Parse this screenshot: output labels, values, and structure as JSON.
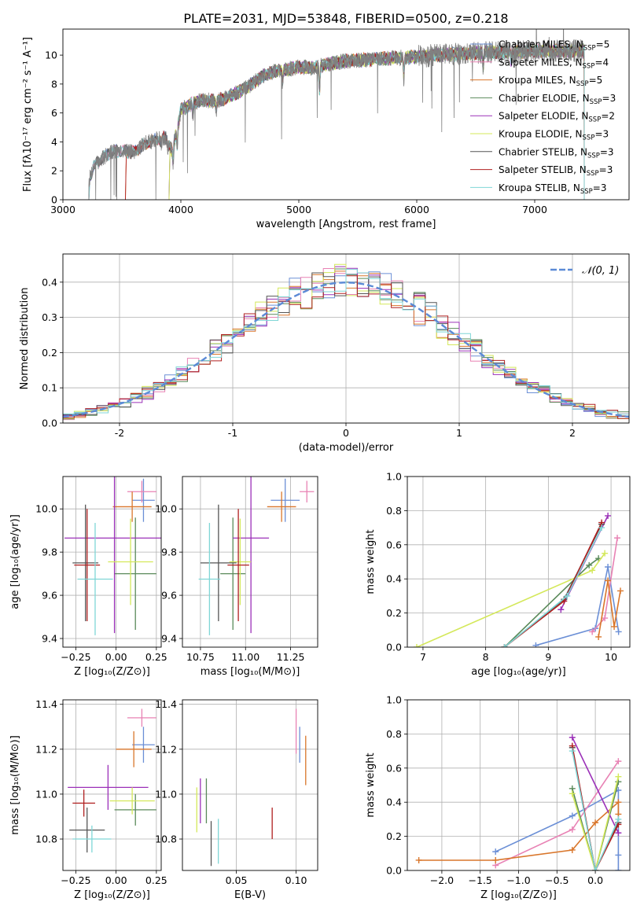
{
  "figure": {
    "title": "PLATE=2031, MJD=53848, FIBERID=0500, z=0.218"
  },
  "models": [
    {
      "name": "Chabrier MILES",
      "nssp": "5",
      "color": "#6b8fd6"
    },
    {
      "name": "Salpeter MILES",
      "nssp": "4",
      "color": "#e882b4"
    },
    {
      "name": "Kroupa MILES",
      "nssp": "5",
      "color": "#d9762b"
    },
    {
      "name": "Chabrier ELODIE",
      "nssp": "3",
      "color": "#5a8a5a"
    },
    {
      "name": "Salpeter ELODIE",
      "nssp": "2",
      "color": "#9b30b8"
    },
    {
      "name": "Kroupa ELODIE",
      "nssp": "3",
      "color": "#d4e85a"
    },
    {
      "name": "Chabrier STELIB",
      "nssp": "3",
      "color": "#555555"
    },
    {
      "name": "Salpeter STELIB",
      "nssp": "3",
      "color": "#b02020"
    },
    {
      "name": "Kroupa STELIB",
      "nssp": "3",
      "color": "#7fd6d6"
    }
  ],
  "chart_data": [
    {
      "id": "spectrum",
      "type": "line",
      "xlabel": "wavelength [Angstrom, rest frame]",
      "ylabel": "Flux [fλ10⁻¹⁷ erg cm⁻² s⁻¹ A⁻¹]",
      "xlim": [
        3000,
        7800
      ],
      "ylim": [
        0,
        11.8
      ],
      "xticks": [
        3000,
        4000,
        5000,
        6000,
        7000
      ],
      "yticks": [
        0,
        2,
        4,
        6,
        8,
        10
      ],
      "data_color": "#808080",
      "data_start": 3220,
      "data_end": 7420,
      "continuum": [
        [
          3220,
          1.3
        ],
        [
          3260,
          2.3
        ],
        [
          3300,
          2.6
        ],
        [
          3400,
          3.3
        ],
        [
          3500,
          3.4
        ],
        [
          3600,
          3.3
        ],
        [
          3700,
          3.9
        ],
        [
          3800,
          4.2
        ],
        [
          3880,
          4.3
        ],
        [
          3920,
          3.4
        ],
        [
          3960,
          4.5
        ],
        [
          4000,
          6.2
        ],
        [
          4100,
          6.7
        ],
        [
          4200,
          6.9
        ],
        [
          4300,
          6.8
        ],
        [
          4400,
          7.1
        ],
        [
          4500,
          7.5
        ],
        [
          4600,
          8.0
        ],
        [
          4700,
          8.6
        ],
        [
          4800,
          8.9
        ],
        [
          4900,
          9.0
        ],
        [
          5000,
          9.2
        ],
        [
          5100,
          9.1
        ],
        [
          5200,
          9.3
        ],
        [
          5400,
          9.6
        ],
        [
          5600,
          9.7
        ],
        [
          5800,
          9.8
        ],
        [
          6000,
          9.9
        ],
        [
          6200,
          10.0
        ],
        [
          6400,
          10.1
        ],
        [
          6600,
          10.2
        ],
        [
          6800,
          10.2
        ],
        [
          7000,
          10.3
        ],
        [
          7200,
          10.3
        ],
        [
          7420,
          10.3
        ]
      ],
      "absorption_dips": [
        [
          3934,
          1.5
        ],
        [
          3969,
          1.3
        ],
        [
          4102,
          1.0
        ],
        [
          4861,
          1.0
        ],
        [
          5175,
          2.2
        ],
        [
          5890,
          1.5
        ],
        [
          6563,
          1.2
        ],
        [
          6800,
          0.8
        ],
        [
          4300,
          0.6
        ],
        [
          3835,
          0.5
        ],
        [
          3889,
          0.6
        ]
      ],
      "model_starts": [
        3220,
        3220,
        3530,
        3900,
        3900,
        3900,
        3220,
        3530,
        3220
      ]
    },
    {
      "id": "residuals",
      "type": "step-histogram",
      "xlabel": "(data-model)/error",
      "ylabel": "Normed distribution",
      "xlim": [
        -2.5,
        2.5
      ],
      "ylim": [
        0,
        0.48
      ],
      "xticks": [
        -2,
        -1,
        0,
        1,
        2
      ],
      "yticks": [
        0.0,
        0.1,
        0.2,
        0.3,
        0.4
      ],
      "bin_width": 0.1,
      "reference": {
        "label": "𝒩(0, 1)",
        "mean": 0,
        "sigma": 1,
        "color": "#5b8ad6"
      }
    },
    {
      "id": "age-vs-Z",
      "type": "errorbar",
      "xlabel": "Z [log₁₀(Z/Z⊙)]",
      "ylabel": "age  [log₁₀(age/yr)]",
      "xlim": [
        -0.33,
        0.28
      ],
      "ylim": [
        9.36,
        10.15
      ],
      "xticks": [
        -0.25,
        0.0,
        0.25
      ],
      "xticklabels": [
        "−0.25",
        "0.00",
        "0.25"
      ],
      "yticks": [
        9.4,
        9.6,
        9.8,
        10.0
      ],
      "points": [
        {
          "model": 0,
          "x": 0.17,
          "xerr": 0.07,
          "y": 10.04,
          "yerr": 0.1
        },
        {
          "model": 1,
          "x": 0.16,
          "xerr": 0.09,
          "y": 10.08,
          "yerr": 0.05
        },
        {
          "model": 2,
          "x": 0.1,
          "xerr": 0.12,
          "y": 10.01,
          "yerr": 0.07
        },
        {
          "model": 3,
          "x": 0.12,
          "xerr": 0.13,
          "y": 9.7,
          "yerr": 0.26
        },
        {
          "model": 4,
          "x": -0.01,
          "xerr": 0.31,
          "y": 9.865,
          "yerr": 0.44
        },
        {
          "model": 5,
          "x": 0.09,
          "xerr": 0.14,
          "y": 9.755,
          "yerr": 0.2
        },
        {
          "model": 6,
          "x": -0.19,
          "xerr": 0.08,
          "y": 9.75,
          "yerr": 0.27
        },
        {
          "model": 7,
          "x": -0.18,
          "xerr": 0.08,
          "y": 9.74,
          "yerr": 0.26
        },
        {
          "model": 8,
          "x": -0.13,
          "xerr": 0.11,
          "y": 9.675,
          "yerr": 0.26
        }
      ]
    },
    {
      "id": "age-vs-mass",
      "type": "errorbar",
      "xlabel": "mass [log₁₀(M/M⊙)]",
      "ylabel": "",
      "xlim": [
        10.65,
        11.4
      ],
      "ylim": [
        9.36,
        10.15
      ],
      "xticks": [
        10.75,
        11.0,
        11.25
      ],
      "xticklabels": [
        "10.75",
        "11.00",
        "11.25"
      ],
      "yticks": [
        9.4,
        9.6,
        9.8,
        10.0
      ],
      "points": [
        {
          "model": 0,
          "x": 11.22,
          "xerr": 0.08,
          "y": 10.04,
          "yerr": 0.1
        },
        {
          "model": 1,
          "x": 11.34,
          "xerr": 0.04,
          "y": 10.08,
          "yerr": 0.05
        },
        {
          "model": 2,
          "x": 11.2,
          "xerr": 0.08,
          "y": 10.01,
          "yerr": 0.07
        },
        {
          "model": 3,
          "x": 10.93,
          "xerr": 0.07,
          "y": 9.7,
          "yerr": 0.26
        },
        {
          "model": 4,
          "x": 11.03,
          "xerr": 0.1,
          "y": 9.865,
          "yerr": 0.44
        },
        {
          "model": 5,
          "x": 10.97,
          "xerr": 0.06,
          "y": 9.755,
          "yerr": 0.2
        },
        {
          "model": 6,
          "x": 10.85,
          "xerr": 0.1,
          "y": 9.75,
          "yerr": 0.27
        },
        {
          "model": 7,
          "x": 10.96,
          "xerr": 0.06,
          "y": 9.74,
          "yerr": 0.26
        },
        {
          "model": 8,
          "x": 10.8,
          "xerr": 0.06,
          "y": 9.675,
          "yerr": 0.26
        }
      ]
    },
    {
      "id": "mass-weight-vs-age",
      "type": "line",
      "xlabel": "age  [log₁₀(age/yr)]",
      "ylabel": "mass weight",
      "xlim": [
        6.75,
        10.3
      ],
      "ylim": [
        0,
        1
      ],
      "xticks": [
        7,
        8,
        9,
        10
      ],
      "yticks": [
        0.0,
        0.2,
        0.4,
        0.6,
        0.8,
        1.0
      ],
      "series": [
        {
          "model": 0,
          "points": [
            [
              8.8,
              0.01
            ],
            [
              9.75,
              0.11
            ],
            [
              9.95,
              0.47
            ],
            [
              10.12,
              0.09
            ]
          ]
        },
        {
          "model": 1,
          "points": [
            [
              9.7,
              0.09
            ],
            [
              9.9,
              0.17
            ],
            [
              10.1,
              0.64
            ]
          ]
        },
        {
          "model": 2,
          "points": [
            [
              9.8,
              0.06
            ],
            [
              9.95,
              0.39
            ],
            [
              10.05,
              0.12
            ],
            [
              10.15,
              0.33
            ]
          ]
        },
        {
          "model": 3,
          "points": [
            [
              8.3,
              0.0
            ],
            [
              9.65,
              0.48
            ],
            [
              9.8,
              0.52
            ]
          ]
        },
        {
          "model": 4,
          "points": [
            [
              9.2,
              0.22
            ],
            [
              9.95,
              0.77
            ]
          ]
        },
        {
          "model": 5,
          "points": [
            [
              6.9,
              0.0
            ],
            [
              9.7,
              0.45
            ],
            [
              9.9,
              0.55
            ]
          ]
        },
        {
          "model": 6,
          "points": [
            [
              8.3,
              0.0
            ],
            [
              9.25,
              0.28
            ],
            [
              9.85,
              0.72
            ]
          ]
        },
        {
          "model": 7,
          "points": [
            [
              8.3,
              0.0
            ],
            [
              9.25,
              0.27
            ],
            [
              9.85,
              0.73
            ]
          ]
        },
        {
          "model": 8,
          "points": [
            [
              8.3,
              0.0
            ],
            [
              9.3,
              0.3
            ],
            [
              9.85,
              0.7
            ]
          ]
        }
      ]
    },
    {
      "id": "mass-vs-Z",
      "type": "errorbar",
      "xlabel": "Z [log₁₀(Z/Z⊙)]",
      "ylabel": "mass [log₁₀(M/M⊙)]",
      "xlim": [
        -0.33,
        0.28
      ],
      "ylim": [
        10.66,
        11.42
      ],
      "xticks": [
        -0.25,
        0.0,
        0.25
      ],
      "xticklabels": [
        "−0.25",
        "0.00",
        "0.25"
      ],
      "yticks": [
        10.8,
        11.0,
        11.2,
        11.4
      ],
      "points": [
        {
          "model": 0,
          "x": 0.17,
          "xerr": 0.07,
          "y": 11.22,
          "yerr": 0.08
        },
        {
          "model": 1,
          "x": 0.16,
          "xerr": 0.09,
          "y": 11.34,
          "yerr": 0.04
        },
        {
          "model": 2,
          "x": 0.11,
          "xerr": 0.11,
          "y": 11.2,
          "yerr": 0.08
        },
        {
          "model": 3,
          "x": 0.12,
          "xerr": 0.13,
          "y": 10.93,
          "yerr": 0.07
        },
        {
          "model": 4,
          "x": -0.05,
          "xerr": 0.25,
          "y": 11.03,
          "yerr": 0.1
        },
        {
          "model": 5,
          "x": 0.1,
          "xerr": 0.14,
          "y": 10.97,
          "yerr": 0.06
        },
        {
          "model": 6,
          "x": -0.18,
          "xerr": 0.11,
          "y": 10.84,
          "yerr": 0.1
        },
        {
          "model": 7,
          "x": -0.2,
          "xerr": 0.07,
          "y": 10.96,
          "yerr": 0.06
        },
        {
          "model": 8,
          "x": -0.15,
          "xerr": 0.12,
          "y": 10.8,
          "yerr": 0.06
        }
      ]
    },
    {
      "id": "mass-vs-ebv",
      "type": "errorbar",
      "xlabel": "E(B-V)",
      "ylabel": "",
      "xlim": [
        0.005,
        0.118
      ],
      "ylim": [
        10.66,
        11.42
      ],
      "xticks": [
        0.05,
        0.1
      ],
      "xticklabels": [
        "0.05",
        "0.10"
      ],
      "yticks": [
        10.8,
        11.0,
        11.2,
        11.4
      ],
      "points": [
        {
          "model": 0,
          "x": 0.103,
          "xerr": 0,
          "y": 11.22,
          "yerr": 0.08
        },
        {
          "model": 1,
          "x": 0.1,
          "xerr": 0,
          "y": 11.28,
          "yerr": 0.1
        },
        {
          "model": 2,
          "x": 0.108,
          "xerr": 0,
          "y": 11.15,
          "yerr": 0.11
        },
        {
          "model": 3,
          "x": 0.025,
          "xerr": 0,
          "y": 10.97,
          "yerr": 0.1
        },
        {
          "model": 4,
          "x": 0.02,
          "xerr": 0,
          "y": 10.97,
          "yerr": 0.1
        },
        {
          "model": 5,
          "x": 0.017,
          "xerr": 0,
          "y": 10.93,
          "yerr": 0.1
        },
        {
          "model": 6,
          "x": 0.029,
          "xerr": 0,
          "y": 10.78,
          "yerr": 0.1
        },
        {
          "model": 7,
          "x": 0.08,
          "xerr": 0,
          "y": 10.87,
          "yerr": 0.07
        },
        {
          "model": 8,
          "x": 0.035,
          "xerr": 0,
          "y": 10.79,
          "yerr": 0.1
        }
      ]
    },
    {
      "id": "mass-weight-vs-Z",
      "type": "line",
      "xlabel": "Z [log₁₀(Z/Z⊙)]",
      "ylabel": "mass weight",
      "xlim": [
        -2.45,
        0.45
      ],
      "ylim": [
        0,
        1
      ],
      "xticks": [
        -2.0,
        -1.5,
        -1.0,
        -0.5,
        0.0
      ],
      "xticklabels": [
        "−2.0",
        "−1.5",
        "−1.0",
        "−0.5",
        "0.0"
      ],
      "yticks": [
        0.0,
        0.2,
        0.4,
        0.6,
        0.8,
        1.0
      ],
      "series": [
        {
          "model": 0,
          "points": [
            [
              -1.3,
              0.11
            ],
            [
              -0.3,
              0.32
            ],
            [
              0.3,
              0.47
            ],
            [
              0.3,
              0.09
            ],
            [
              0.3,
              0.0
            ]
          ]
        },
        {
          "model": 1,
          "points": [
            [
              -1.3,
              0.03
            ],
            [
              -0.3,
              0.24
            ],
            [
              0.3,
              0.64
            ]
          ]
        },
        {
          "model": 2,
          "points": [
            [
              -2.3,
              0.06
            ],
            [
              -1.3,
              0.06
            ],
            [
              -0.3,
              0.12
            ],
            [
              0.0,
              0.28
            ],
            [
              0.3,
              0.4
            ],
            [
              0.3,
              0.33
            ]
          ]
        },
        {
          "model": 3,
          "points": [
            [
              -0.3,
              0.48
            ],
            [
              0.0,
              0.0
            ],
            [
              0.3,
              0.52
            ]
          ]
        },
        {
          "model": 4,
          "points": [
            [
              -0.3,
              0.78
            ],
            [
              0.3,
              0.22
            ]
          ]
        },
        {
          "model": 5,
          "points": [
            [
              -0.3,
              0.45
            ],
            [
              0.0,
              0.0
            ],
            [
              0.3,
              0.55
            ]
          ]
        },
        {
          "model": 6,
          "points": [
            [
              -0.3,
              0.72
            ],
            [
              0.0,
              0.0
            ],
            [
              0.3,
              0.28
            ]
          ]
        },
        {
          "model": 7,
          "points": [
            [
              -0.3,
              0.73
            ],
            [
              0.0,
              0.0
            ],
            [
              0.3,
              0.27
            ]
          ]
        },
        {
          "model": 8,
          "points": [
            [
              -0.3,
              0.7
            ],
            [
              0.0,
              0.0
            ],
            [
              0.3,
              0.3
            ]
          ]
        }
      ]
    }
  ]
}
